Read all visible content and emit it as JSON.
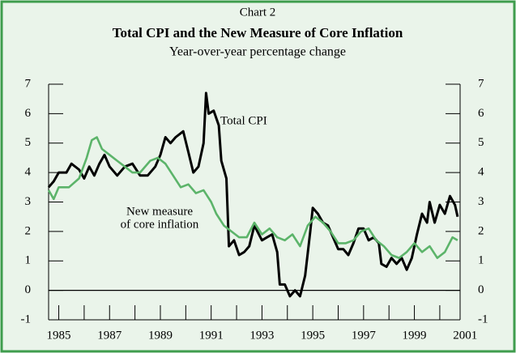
{
  "chart_data": {
    "type": "line",
    "header": "Chart 2",
    "title": "Total CPI and the New Measure of Core Inflation",
    "subtitle": "Year-over-year percentage change",
    "annotations": [
      [
        "Total CPI"
      ],
      [
        "New measure",
        "of core inflation"
      ]
    ],
    "xlim": [
      1984.6,
      2000.8
    ],
    "xticks": [
      1985,
      1987,
      1989,
      1991,
      1993,
      1995,
      1997,
      1999,
      2001
    ],
    "ylim": [
      -1,
      7
    ],
    "yticks": [
      -1,
      0,
      1,
      2,
      3,
      4,
      5,
      6,
      7
    ],
    "series": [
      {
        "name": "Total CPI",
        "color": "#000000",
        "x": [
          1984.6,
          1984.8,
          1985.0,
          1985.3,
          1985.5,
          1985.8,
          1986.0,
          1986.2,
          1986.4,
          1986.6,
          1986.8,
          1987.0,
          1987.3,
          1987.6,
          1987.9,
          1988.2,
          1988.5,
          1988.8,
          1989.0,
          1989.2,
          1989.4,
          1989.6,
          1989.9,
          1990.1,
          1990.3,
          1990.5,
          1990.7,
          1990.8,
          1990.9,
          1991.1,
          1991.3,
          1991.4,
          1991.6,
          1991.7,
          1991.9,
          1992.1,
          1992.3,
          1992.5,
          1992.7,
          1993.0,
          1993.2,
          1993.4,
          1993.6,
          1993.7,
          1993.9,
          1994.1,
          1994.3,
          1994.5,
          1994.7,
          1994.9,
          1995.0,
          1995.2,
          1995.4,
          1995.6,
          1995.8,
          1996.0,
          1996.2,
          1996.4,
          1996.6,
          1996.8,
          1997.0,
          1997.2,
          1997.4,
          1997.6,
          1997.7,
          1997.9,
          1998.1,
          1998.3,
          1998.5,
          1998.7,
          1998.9,
          1999.1,
          1999.3,
          1999.5,
          1999.6,
          1999.8,
          2000.0,
          2000.2,
          2000.4,
          2000.6,
          2000.7
        ],
        "values": [
          3.5,
          3.7,
          4.0,
          4.0,
          4.3,
          4.1,
          3.8,
          4.2,
          3.9,
          4.3,
          4.6,
          4.2,
          3.9,
          4.2,
          4.3,
          3.9,
          3.9,
          4.2,
          4.6,
          5.2,
          5.0,
          5.2,
          5.4,
          4.7,
          4.0,
          4.2,
          5.0,
          6.7,
          6.0,
          6.1,
          5.6,
          4.4,
          3.8,
          1.5,
          1.7,
          1.2,
          1.3,
          1.5,
          2.2,
          1.7,
          1.8,
          1.9,
          1.3,
          0.2,
          0.2,
          -0.2,
          0.0,
          -0.2,
          0.5,
          2.0,
          2.8,
          2.6,
          2.3,
          2.2,
          1.8,
          1.4,
          1.4,
          1.2,
          1.6,
          2.1,
          2.1,
          1.7,
          1.8,
          1.6,
          0.9,
          0.8,
          1.1,
          0.9,
          1.1,
          0.7,
          1.1,
          1.9,
          2.6,
          2.3,
          3.0,
          2.3,
          2.9,
          2.6,
          3.2,
          2.9,
          2.5
        ]
      },
      {
        "name": "New measure of core inflation",
        "color": "#5cb46a",
        "x": [
          1984.6,
          1984.8,
          1985.0,
          1985.4,
          1985.8,
          1986.1,
          1986.3,
          1986.5,
          1986.7,
          1987.0,
          1987.3,
          1987.6,
          1987.9,
          1988.2,
          1988.6,
          1988.9,
          1989.2,
          1989.5,
          1989.8,
          1990.1,
          1990.4,
          1990.7,
          1991.0,
          1991.2,
          1991.5,
          1991.8,
          1992.1,
          1992.4,
          1992.7,
          1993.0,
          1993.3,
          1993.6,
          1993.9,
          1994.2,
          1994.5,
          1994.8,
          1995.1,
          1995.4,
          1995.7,
          1996.0,
          1996.3,
          1996.6,
          1996.9,
          1997.2,
          1997.5,
          1997.8,
          1998.1,
          1998.4,
          1998.7,
          1999.0,
          1999.3,
          1999.6,
          1999.9,
          2000.2,
          2000.5,
          2000.7
        ],
        "values": [
          3.4,
          3.1,
          3.5,
          3.5,
          3.8,
          4.5,
          5.1,
          5.2,
          4.8,
          4.6,
          4.4,
          4.2,
          4.0,
          4.0,
          4.4,
          4.5,
          4.3,
          3.9,
          3.5,
          3.6,
          3.3,
          3.4,
          3.0,
          2.6,
          2.2,
          2.0,
          1.8,
          1.8,
          2.3,
          1.9,
          2.1,
          1.8,
          1.7,
          1.9,
          1.5,
          2.2,
          2.5,
          2.3,
          2.0,
          1.6,
          1.6,
          1.7,
          2.0,
          2.1,
          1.7,
          1.5,
          1.2,
          1.1,
          1.3,
          1.6,
          1.3,
          1.5,
          1.1,
          1.3,
          1.8,
          1.7
        ]
      }
    ]
  }
}
